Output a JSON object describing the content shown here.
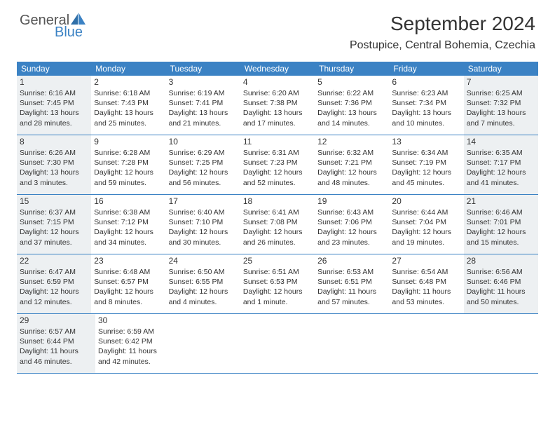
{
  "colors": {
    "header_bar": "#3b82c4",
    "row_divider": "#3b82c4",
    "shaded_bg": "#edf0f2",
    "text": "#333333",
    "logo_gray": "#555555",
    "logo_blue": "#3b82c4",
    "background": "#ffffff"
  },
  "typography": {
    "month_title_size": 28,
    "location_size": 16,
    "weekday_size": 12,
    "daynum_size": 12,
    "body_size": 10.5
  },
  "logo": {
    "part1": "General",
    "part2": "Blue"
  },
  "title": "September 2024",
  "location": "Postupice, Central Bohemia, Czechia",
  "weekdays": [
    "Sunday",
    "Monday",
    "Tuesday",
    "Wednesday",
    "Thursday",
    "Friday",
    "Saturday"
  ],
  "weeks": [
    [
      {
        "n": "1",
        "shaded": true,
        "sr": "Sunrise: 6:16 AM",
        "ss": "Sunset: 7:45 PM",
        "d1": "Daylight: 13 hours",
        "d2": "and 28 minutes."
      },
      {
        "n": "2",
        "shaded": false,
        "sr": "Sunrise: 6:18 AM",
        "ss": "Sunset: 7:43 PM",
        "d1": "Daylight: 13 hours",
        "d2": "and 25 minutes."
      },
      {
        "n": "3",
        "shaded": false,
        "sr": "Sunrise: 6:19 AM",
        "ss": "Sunset: 7:41 PM",
        "d1": "Daylight: 13 hours",
        "d2": "and 21 minutes."
      },
      {
        "n": "4",
        "shaded": false,
        "sr": "Sunrise: 6:20 AM",
        "ss": "Sunset: 7:38 PM",
        "d1": "Daylight: 13 hours",
        "d2": "and 17 minutes."
      },
      {
        "n": "5",
        "shaded": false,
        "sr": "Sunrise: 6:22 AM",
        "ss": "Sunset: 7:36 PM",
        "d1": "Daylight: 13 hours",
        "d2": "and 14 minutes."
      },
      {
        "n": "6",
        "shaded": false,
        "sr": "Sunrise: 6:23 AM",
        "ss": "Sunset: 7:34 PM",
        "d1": "Daylight: 13 hours",
        "d2": "and 10 minutes."
      },
      {
        "n": "7",
        "shaded": true,
        "sr": "Sunrise: 6:25 AM",
        "ss": "Sunset: 7:32 PM",
        "d1": "Daylight: 13 hours",
        "d2": "and 7 minutes."
      }
    ],
    [
      {
        "n": "8",
        "shaded": true,
        "sr": "Sunrise: 6:26 AM",
        "ss": "Sunset: 7:30 PM",
        "d1": "Daylight: 13 hours",
        "d2": "and 3 minutes."
      },
      {
        "n": "9",
        "shaded": false,
        "sr": "Sunrise: 6:28 AM",
        "ss": "Sunset: 7:28 PM",
        "d1": "Daylight: 12 hours",
        "d2": "and 59 minutes."
      },
      {
        "n": "10",
        "shaded": false,
        "sr": "Sunrise: 6:29 AM",
        "ss": "Sunset: 7:25 PM",
        "d1": "Daylight: 12 hours",
        "d2": "and 56 minutes."
      },
      {
        "n": "11",
        "shaded": false,
        "sr": "Sunrise: 6:31 AM",
        "ss": "Sunset: 7:23 PM",
        "d1": "Daylight: 12 hours",
        "d2": "and 52 minutes."
      },
      {
        "n": "12",
        "shaded": false,
        "sr": "Sunrise: 6:32 AM",
        "ss": "Sunset: 7:21 PM",
        "d1": "Daylight: 12 hours",
        "d2": "and 48 minutes."
      },
      {
        "n": "13",
        "shaded": false,
        "sr": "Sunrise: 6:34 AM",
        "ss": "Sunset: 7:19 PM",
        "d1": "Daylight: 12 hours",
        "d2": "and 45 minutes."
      },
      {
        "n": "14",
        "shaded": true,
        "sr": "Sunrise: 6:35 AM",
        "ss": "Sunset: 7:17 PM",
        "d1": "Daylight: 12 hours",
        "d2": "and 41 minutes."
      }
    ],
    [
      {
        "n": "15",
        "shaded": true,
        "sr": "Sunrise: 6:37 AM",
        "ss": "Sunset: 7:15 PM",
        "d1": "Daylight: 12 hours",
        "d2": "and 37 minutes."
      },
      {
        "n": "16",
        "shaded": false,
        "sr": "Sunrise: 6:38 AM",
        "ss": "Sunset: 7:12 PM",
        "d1": "Daylight: 12 hours",
        "d2": "and 34 minutes."
      },
      {
        "n": "17",
        "shaded": false,
        "sr": "Sunrise: 6:40 AM",
        "ss": "Sunset: 7:10 PM",
        "d1": "Daylight: 12 hours",
        "d2": "and 30 minutes."
      },
      {
        "n": "18",
        "shaded": false,
        "sr": "Sunrise: 6:41 AM",
        "ss": "Sunset: 7:08 PM",
        "d1": "Daylight: 12 hours",
        "d2": "and 26 minutes."
      },
      {
        "n": "19",
        "shaded": false,
        "sr": "Sunrise: 6:43 AM",
        "ss": "Sunset: 7:06 PM",
        "d1": "Daylight: 12 hours",
        "d2": "and 23 minutes."
      },
      {
        "n": "20",
        "shaded": false,
        "sr": "Sunrise: 6:44 AM",
        "ss": "Sunset: 7:04 PM",
        "d1": "Daylight: 12 hours",
        "d2": "and 19 minutes."
      },
      {
        "n": "21",
        "shaded": true,
        "sr": "Sunrise: 6:46 AM",
        "ss": "Sunset: 7:01 PM",
        "d1": "Daylight: 12 hours",
        "d2": "and 15 minutes."
      }
    ],
    [
      {
        "n": "22",
        "shaded": true,
        "sr": "Sunrise: 6:47 AM",
        "ss": "Sunset: 6:59 PM",
        "d1": "Daylight: 12 hours",
        "d2": "and 12 minutes."
      },
      {
        "n": "23",
        "shaded": false,
        "sr": "Sunrise: 6:48 AM",
        "ss": "Sunset: 6:57 PM",
        "d1": "Daylight: 12 hours",
        "d2": "and 8 minutes."
      },
      {
        "n": "24",
        "shaded": false,
        "sr": "Sunrise: 6:50 AM",
        "ss": "Sunset: 6:55 PM",
        "d1": "Daylight: 12 hours",
        "d2": "and 4 minutes."
      },
      {
        "n": "25",
        "shaded": false,
        "sr": "Sunrise: 6:51 AM",
        "ss": "Sunset: 6:53 PM",
        "d1": "Daylight: 12 hours",
        "d2": "and 1 minute."
      },
      {
        "n": "26",
        "shaded": false,
        "sr": "Sunrise: 6:53 AM",
        "ss": "Sunset: 6:51 PM",
        "d1": "Daylight: 11 hours",
        "d2": "and 57 minutes."
      },
      {
        "n": "27",
        "shaded": false,
        "sr": "Sunrise: 6:54 AM",
        "ss": "Sunset: 6:48 PM",
        "d1": "Daylight: 11 hours",
        "d2": "and 53 minutes."
      },
      {
        "n": "28",
        "shaded": true,
        "sr": "Sunrise: 6:56 AM",
        "ss": "Sunset: 6:46 PM",
        "d1": "Daylight: 11 hours",
        "d2": "and 50 minutes."
      }
    ],
    [
      {
        "n": "29",
        "shaded": true,
        "sr": "Sunrise: 6:57 AM",
        "ss": "Sunset: 6:44 PM",
        "d1": "Daylight: 11 hours",
        "d2": "and 46 minutes."
      },
      {
        "n": "30",
        "shaded": false,
        "sr": "Sunrise: 6:59 AM",
        "ss": "Sunset: 6:42 PM",
        "d1": "Daylight: 11 hours",
        "d2": "and 42 minutes."
      },
      null,
      null,
      null,
      null,
      null
    ]
  ]
}
